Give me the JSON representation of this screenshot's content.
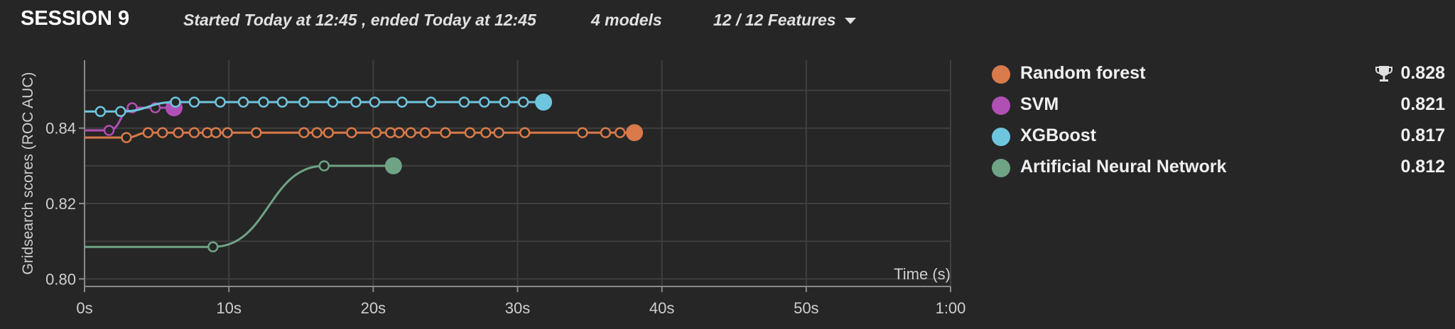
{
  "header": {
    "title": "SESSION 9",
    "info": "Started Today at 12:45 , ended Today at 12:45",
    "models": "4 models",
    "features": "12 / 12 Features"
  },
  "legend": [
    {
      "name": "Random forest",
      "score": "0.828",
      "color": "#d97a4a",
      "best": true,
      "icon": "trophy-icon"
    },
    {
      "name": "SVM",
      "score": "0.821",
      "color": "#b04fb4",
      "best": false
    },
    {
      "name": "XGBoost",
      "score": "0.817",
      "color": "#6ec5de",
      "best": false
    },
    {
      "name": "Artificial Neural Network",
      "score": "0.812",
      "color": "#6fa385",
      "best": false
    }
  ],
  "chart_data": {
    "type": "line",
    "xlabel": "Time (s)",
    "ylabel": "Gridsearch scores (ROC AUC)",
    "xlim": [
      0,
      60
    ],
    "ylim": [
      0.798,
      0.858
    ],
    "x_ticks": [
      0,
      10,
      20,
      30,
      40,
      50,
      60
    ],
    "x_tick_labels": [
      "0s",
      "10s",
      "20s",
      "30s",
      "40s",
      "50s",
      "1:00"
    ],
    "y_ticks": [
      0.8,
      0.82,
      0.84
    ],
    "y_tick_labels": [
      "0.80",
      "0.82",
      "0.84"
    ],
    "grid": true,
    "series": [
      {
        "name": "Random forest",
        "color": "#d97a4a",
        "start": 0,
        "start_y": 0.8375,
        "x": [
          2.9,
          4.4,
          5.4,
          6.5,
          7.6,
          8.5,
          9.1,
          9.9,
          11.9,
          15.2,
          16.1,
          16.9,
          18.5,
          20.2,
          21.2,
          21.8,
          22.6,
          23.6,
          25.0,
          26.7,
          27.8,
          28.7,
          30.5,
          34.5,
          36.1,
          37.1,
          38.1
        ],
        "y": [
          0.8375,
          0.8388,
          0.8388,
          0.8388,
          0.8388,
          0.8388,
          0.8388,
          0.8388,
          0.8388,
          0.8388,
          0.8388,
          0.8388,
          0.8388,
          0.8388,
          0.8388,
          0.8388,
          0.8388,
          0.8388,
          0.8388,
          0.8388,
          0.8388,
          0.8388,
          0.8388,
          0.8388,
          0.8388,
          0.8388,
          0.8388
        ]
      },
      {
        "name": "SVM",
        "color": "#b04fb4",
        "start": 0,
        "start_y": 0.8394,
        "x": [
          1.7,
          3.3,
          4.9,
          6.2
        ],
        "y": [
          0.8394,
          0.8454,
          0.8454,
          0.8454
        ]
      },
      {
        "name": "XGBoost",
        "color": "#6ec5de",
        "start": 0,
        "start_y": 0.8444,
        "x": [
          1.1,
          2.5,
          6.3,
          7.6,
          9.4,
          11.0,
          12.4,
          13.7,
          15.2,
          17.2,
          18.8,
          20.1,
          22.0,
          24.0,
          26.3,
          27.7,
          29.1,
          30.4,
          31.8
        ],
        "y": [
          0.8444,
          0.8444,
          0.8469,
          0.8469,
          0.8469,
          0.8469,
          0.8469,
          0.8469,
          0.8469,
          0.8469,
          0.8469,
          0.8469,
          0.8469,
          0.8469,
          0.8469,
          0.8469,
          0.8469,
          0.8469,
          0.8469
        ]
      },
      {
        "name": "Artificial Neural Network",
        "color": "#6fa385",
        "start": 0,
        "start_y": 0.8085,
        "x": [
          8.9,
          16.6,
          21.4
        ],
        "y": [
          0.8085,
          0.83,
          0.83
        ]
      }
    ]
  }
}
